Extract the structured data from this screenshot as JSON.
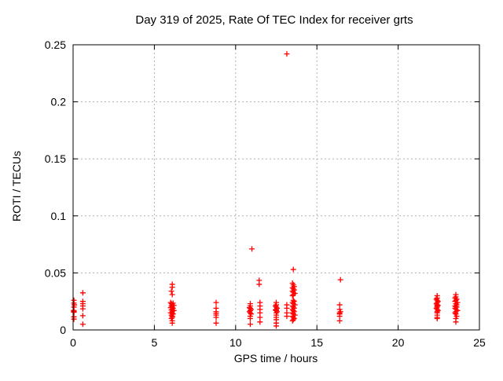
{
  "chart_data": {
    "type": "scatter",
    "title": "Day 319 of 2025, Rate Of TEC Index for receiver grts",
    "xlabel": "GPS time / hours",
    "ylabel": "ROTI / TECUs",
    "xlim": [
      0,
      25
    ],
    "ylim": [
      0,
      0.25
    ],
    "xtick_values": [
      0,
      5,
      10,
      15,
      20,
      25
    ],
    "xtick_labels": [
      "0",
      "5",
      "10",
      "15",
      "20",
      "25"
    ],
    "ytick_values": [
      0,
      0.05,
      0.1,
      0.15,
      0.2,
      0.25
    ],
    "ytick_labels": [
      "0",
      "0.05",
      "0.1",
      "0.15",
      "0.2",
      "0.25"
    ],
    "grid": true,
    "legend_position": "none",
    "marker": "plus",
    "colors": {
      "points": "#ff0000",
      "grid": "#b0b0b0",
      "axis": "#000000",
      "background": "#ffffff",
      "text": "#000000"
    },
    "series": [
      {
        "name": "ROTI",
        "points": [
          [
            0.05,
            0.026
          ],
          [
            0.05,
            0.0235
          ],
          [
            0.08,
            0.022
          ],
          [
            0.05,
            0.02
          ],
          [
            0.03,
            0.017
          ],
          [
            0.06,
            0.0165
          ],
          [
            0.04,
            0.016
          ],
          [
            0.05,
            0.0155
          ],
          [
            0.05,
            0.0115
          ],
          [
            0.05,
            0.0095
          ],
          [
            0.6,
            0.0325
          ],
          [
            0.6,
            0.025
          ],
          [
            0.6,
            0.023
          ],
          [
            0.6,
            0.021
          ],
          [
            0.6,
            0.0185
          ],
          [
            0.6,
            0.0125
          ],
          [
            0.6,
            0.005
          ],
          [
            6.1,
            0.04
          ],
          [
            6.1,
            0.0375
          ],
          [
            6.05,
            0.034
          ],
          [
            6.1,
            0.031
          ],
          [
            6.0,
            0.024
          ],
          [
            6.15,
            0.0235
          ],
          [
            6.05,
            0.023
          ],
          [
            6.1,
            0.022
          ],
          [
            6.2,
            0.0215
          ],
          [
            6.05,
            0.021
          ],
          [
            6.1,
            0.02
          ],
          [
            6.0,
            0.0195
          ],
          [
            6.15,
            0.019
          ],
          [
            6.1,
            0.018
          ],
          [
            6.05,
            0.0175
          ],
          [
            6.2,
            0.017
          ],
          [
            6.1,
            0.016
          ],
          [
            6.0,
            0.015
          ],
          [
            6.1,
            0.0145
          ],
          [
            6.15,
            0.014
          ],
          [
            6.05,
            0.013
          ],
          [
            6.1,
            0.012
          ],
          [
            6.1,
            0.011
          ],
          [
            6.05,
            0.01
          ],
          [
            6.1,
            0.008
          ],
          [
            6.1,
            0.006
          ],
          [
            8.8,
            0.024
          ],
          [
            8.8,
            0.019
          ],
          [
            8.8,
            0.016
          ],
          [
            8.8,
            0.0145
          ],
          [
            8.8,
            0.013
          ],
          [
            8.8,
            0.011
          ],
          [
            8.8,
            0.006
          ],
          [
            11.0,
            0.071
          ],
          [
            10.9,
            0.023
          ],
          [
            10.9,
            0.021
          ],
          [
            10.85,
            0.0195
          ],
          [
            10.9,
            0.019
          ],
          [
            10.95,
            0.018
          ],
          [
            10.9,
            0.017
          ],
          [
            10.85,
            0.016
          ],
          [
            10.9,
            0.015
          ],
          [
            10.95,
            0.014
          ],
          [
            10.9,
            0.012
          ],
          [
            10.9,
            0.01
          ],
          [
            10.9,
            0.005
          ],
          [
            11.45,
            0.0435
          ],
          [
            11.45,
            0.04
          ],
          [
            11.5,
            0.024
          ],
          [
            11.5,
            0.021
          ],
          [
            11.5,
            0.018
          ],
          [
            11.5,
            0.015
          ],
          [
            11.5,
            0.011
          ],
          [
            11.5,
            0.007
          ],
          [
            12.5,
            0.024
          ],
          [
            12.5,
            0.022
          ],
          [
            12.45,
            0.021
          ],
          [
            12.5,
            0.02
          ],
          [
            12.55,
            0.019
          ],
          [
            12.5,
            0.018
          ],
          [
            12.45,
            0.0175
          ],
          [
            12.5,
            0.017
          ],
          [
            12.55,
            0.016
          ],
          [
            12.5,
            0.015
          ],
          [
            12.5,
            0.013
          ],
          [
            12.5,
            0.011
          ],
          [
            12.5,
            0.009
          ],
          [
            12.5,
            0.006
          ],
          [
            12.5,
            0.0035
          ],
          [
            13.15,
            0.242
          ],
          [
            13.15,
            0.022
          ],
          [
            13.15,
            0.019
          ],
          [
            13.15,
            0.015
          ],
          [
            13.15,
            0.012
          ],
          [
            13.55,
            0.053
          ],
          [
            13.5,
            0.041
          ],
          [
            13.55,
            0.0395
          ],
          [
            13.6,
            0.038
          ],
          [
            13.5,
            0.037
          ],
          [
            13.55,
            0.036
          ],
          [
            13.6,
            0.035
          ],
          [
            13.5,
            0.034
          ],
          [
            13.55,
            0.033
          ],
          [
            13.65,
            0.032
          ],
          [
            13.55,
            0.031
          ],
          [
            13.5,
            0.03
          ],
          [
            13.55,
            0.026
          ],
          [
            13.6,
            0.025
          ],
          [
            13.5,
            0.024
          ],
          [
            13.55,
            0.023
          ],
          [
            13.65,
            0.022
          ],
          [
            13.5,
            0.021
          ],
          [
            13.55,
            0.02
          ],
          [
            13.6,
            0.019
          ],
          [
            13.5,
            0.018
          ],
          [
            13.55,
            0.017
          ],
          [
            13.6,
            0.016
          ],
          [
            13.5,
            0.015
          ],
          [
            13.55,
            0.014
          ],
          [
            13.65,
            0.013
          ],
          [
            13.5,
            0.012
          ],
          [
            13.55,
            0.011
          ],
          [
            13.6,
            0.01
          ],
          [
            13.55,
            0.009
          ],
          [
            13.5,
            0.008
          ],
          [
            16.45,
            0.044
          ],
          [
            16.4,
            0.022
          ],
          [
            16.4,
            0.018
          ],
          [
            16.45,
            0.016
          ],
          [
            16.4,
            0.015
          ],
          [
            16.4,
            0.014
          ],
          [
            16.4,
            0.012
          ],
          [
            16.4,
            0.008
          ],
          [
            22.4,
            0.03
          ],
          [
            22.4,
            0.028
          ],
          [
            22.35,
            0.027
          ],
          [
            22.4,
            0.026
          ],
          [
            22.45,
            0.025
          ],
          [
            22.4,
            0.024
          ],
          [
            22.35,
            0.023
          ],
          [
            22.4,
            0.022
          ],
          [
            22.45,
            0.0215
          ],
          [
            22.4,
            0.021
          ],
          [
            22.4,
            0.02
          ],
          [
            22.35,
            0.019
          ],
          [
            22.4,
            0.018
          ],
          [
            22.45,
            0.017
          ],
          [
            22.4,
            0.016
          ],
          [
            22.4,
            0.015
          ],
          [
            22.4,
            0.013
          ],
          [
            22.4,
            0.011
          ],
          [
            22.4,
            0.01
          ],
          [
            23.55,
            0.031
          ],
          [
            23.55,
            0.029
          ],
          [
            23.5,
            0.028
          ],
          [
            23.6,
            0.027
          ],
          [
            23.55,
            0.026
          ],
          [
            23.5,
            0.025
          ],
          [
            23.65,
            0.024
          ],
          [
            23.55,
            0.023
          ],
          [
            23.6,
            0.022
          ],
          [
            23.5,
            0.021
          ],
          [
            23.55,
            0.0205
          ],
          [
            23.6,
            0.02
          ],
          [
            23.5,
            0.019
          ],
          [
            23.55,
            0.018
          ],
          [
            23.65,
            0.017
          ],
          [
            23.55,
            0.016
          ],
          [
            23.5,
            0.015
          ],
          [
            23.55,
            0.014
          ],
          [
            23.6,
            0.012
          ],
          [
            23.55,
            0.01
          ],
          [
            23.55,
            0.007
          ]
        ]
      }
    ]
  }
}
